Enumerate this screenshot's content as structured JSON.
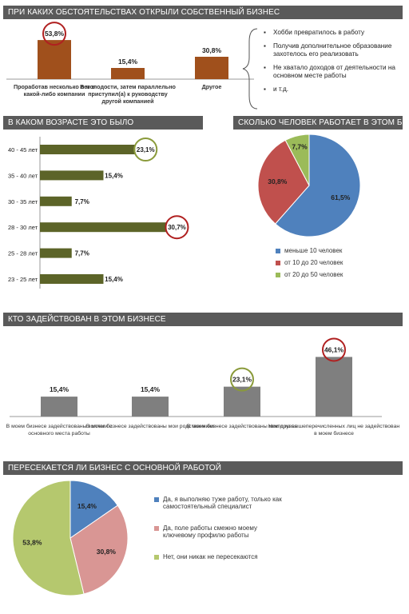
{
  "sections": {
    "s1": "ПРИ КАКИХ ОБСТОЯТЕЛЬСТВАХ ОТКРЫЛИ СОБСТВЕННЫЙ БИЗНЕС",
    "s2": "В КАКОМ ВОЗРАСТЕ ЭТО БЫЛО",
    "s3": "СКОЛЬКО ЧЕЛОВЕК РАБОТАЕТ В ЭТОМ БИЗНЕСЕ",
    "s4": "КТО ЗАДЕЙСТВОВАН В ЭТОМ БИЗНЕСЕ",
    "s5": "ПЕРЕСЕКАЕТСЯ ЛИ БИЗНЕС С ОСНОВНОЙ РАБОТОЙ"
  },
  "bullets": [
    "Хобби превратилось в работу",
    "Получив дополнительное образование захотелось его реализовать",
    "Не хватало доходов от деятельности на основном месте работы",
    "и т.д."
  ],
  "colors": {
    "brown": "#a0501c",
    "olive": "#5c6428",
    "blue": "#4f81bd",
    "red": "#c0504d",
    "green": "#9bbb59",
    "pink": "#d99694",
    "lightgreen": "#b5c86e",
    "gray": "#7f7f7f",
    "highlight_red": "#b02020",
    "highlight_green": "#8a9a3a"
  },
  "chart_data": [
    {
      "id": "circumstances",
      "type": "bar",
      "categories": [
        "Проработав несколько лет в какой-либо компании",
        "В молодости, затем параллельно приступил(а) к руководству другой компанией",
        "Другое"
      ],
      "values": [
        53.8,
        15.4,
        30.8
      ],
      "labels": [
        "53,8%",
        "15,4%",
        "30,8%"
      ],
      "highlight_index": 0
    },
    {
      "id": "age",
      "type": "bar",
      "orientation": "horizontal",
      "categories": [
        "40 - 45 лет",
        "35 - 40 лет",
        "30 - 35 лет",
        "28 - 30 лет",
        "25 - 28 лет",
        "23 - 25 лет"
      ],
      "values": [
        23.1,
        15.4,
        7.7,
        30.7,
        7.7,
        15.4
      ],
      "labels": [
        "23,1%",
        "15,4%",
        "7,7%",
        "30,7%",
        "7,7%",
        "15,4%"
      ],
      "highlight": {
        "0": "green",
        "3": "red"
      }
    },
    {
      "id": "staff",
      "type": "pie",
      "categories": [
        "меньше 10 человек",
        "от 10 до 20 человек",
        "от 20 до 50 человек"
      ],
      "values": [
        61.5,
        30.8,
        7.7
      ],
      "labels": [
        "61,5%",
        "30,8%",
        "7,7%"
      ]
    },
    {
      "id": "involved",
      "type": "bar",
      "categories": [
        "В моем бизнесе задействованы коллеги с основного места работы",
        "В моем бизнесе задействованы мои родственники",
        "В моем бизнесе задействованы мои друзья",
        "Никто из вышеперечисленных лиц не задействован в моем бизнесе"
      ],
      "values": [
        15.4,
        15.4,
        23.1,
        46.1
      ],
      "labels": [
        "15,4%",
        "15,4%",
        "23,1%",
        "46,1%"
      ],
      "highlight": {
        "2": "green",
        "3": "red"
      }
    },
    {
      "id": "overlap",
      "type": "pie",
      "categories": [
        "Да, я выполняю туже работу, только как самостоятельный специалист",
        "Да, поле работы смежно моему ключевому профилю работы",
        "Нет, они никак не пересекаются"
      ],
      "values": [
        15.4,
        30.8,
        53.8
      ],
      "labels": [
        "15,4%",
        "30,8%",
        "53,8%"
      ]
    }
  ]
}
